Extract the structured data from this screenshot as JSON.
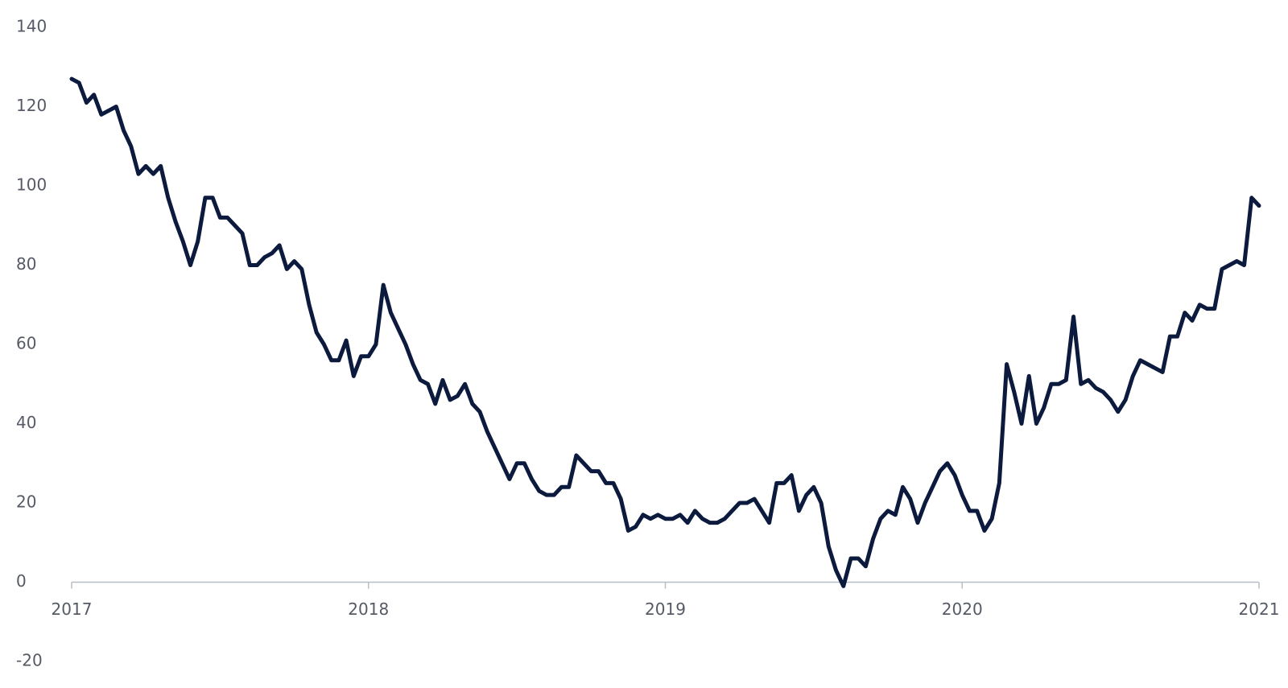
{
  "chart_data": {
    "type": "line",
    "x": [
      2017,
      2017.025,
      2017.05,
      2017.075,
      2017.1,
      2017.125,
      2017.15,
      2017.175,
      2017.2,
      2017.225,
      2017.25,
      2017.275,
      2017.3,
      2017.325,
      2017.35,
      2017.375,
      2017.4,
      2017.425,
      2017.45,
      2017.475,
      2017.5,
      2017.525,
      2017.55,
      2017.575,
      2017.6,
      2017.625,
      2017.65,
      2017.675,
      2017.7,
      2017.725,
      2017.75,
      2017.775,
      2017.8,
      2017.825,
      2017.85,
      2017.875,
      2017.9,
      2017.925,
      2017.95,
      2017.975,
      2018,
      2018.025,
      2018.05,
      2018.075,
      2018.1,
      2018.125,
      2018.15,
      2018.175,
      2018.2,
      2018.225,
      2018.25,
      2018.275,
      2018.3,
      2018.325,
      2018.35,
      2018.375,
      2018.4,
      2018.425,
      2018.45,
      2018.475,
      2018.5,
      2018.525,
      2018.55,
      2018.575,
      2018.6,
      2018.625,
      2018.65,
      2018.675,
      2018.7,
      2018.725,
      2018.75,
      2018.775,
      2018.8,
      2018.825,
      2018.85,
      2018.875,
      2018.9,
      2018.925,
      2018.95,
      2018.975,
      2019,
      2019.025,
      2019.05,
      2019.075,
      2019.1,
      2019.125,
      2019.15,
      2019.175,
      2019.2,
      2019.225,
      2019.25,
      2019.275,
      2019.3,
      2019.325,
      2019.35,
      2019.375,
      2019.4,
      2019.425,
      2019.45,
      2019.475,
      2019.5,
      2019.525,
      2019.55,
      2019.575,
      2019.6,
      2019.625,
      2019.65,
      2019.675,
      2019.7,
      2019.725,
      2019.75,
      2019.775,
      2019.8,
      2019.825,
      2019.85,
      2019.875,
      2019.9,
      2019.925,
      2019.95,
      2019.975,
      2020,
      2020.025,
      2020.05,
      2020.075,
      2020.1,
      2020.125,
      2020.15,
      2020.175,
      2020.2,
      2020.225,
      2020.25,
      2020.275,
      2020.3,
      2020.325,
      2020.35,
      2020.375,
      2020.4,
      2020.425,
      2020.45,
      2020.475,
      2020.5,
      2020.525,
      2020.55,
      2020.575,
      2020.6,
      2020.625,
      2020.65,
      2020.675,
      2020.7,
      2020.725,
      2020.75,
      2020.775,
      2020.8,
      2020.825,
      2020.85,
      2020.875,
      2020.9,
      2020.925,
      2020.95,
      2020.975,
      2021
    ],
    "values": [
      127,
      126,
      121,
      123,
      118,
      119,
      120,
      114,
      110,
      103,
      105,
      103,
      105,
      97,
      91,
      86,
      80,
      86,
      97,
      97,
      92,
      92,
      90,
      88,
      80,
      80,
      82,
      83,
      85,
      79,
      81,
      79,
      70,
      63,
      60,
      56,
      56,
      61,
      52,
      57,
      57,
      60,
      75,
      68,
      64,
      60,
      55,
      51,
      50,
      45,
      51,
      46,
      47,
      50,
      45,
      43,
      38,
      34,
      30,
      26,
      30,
      30,
      26,
      23,
      22,
      22,
      24,
      24,
      32,
      30,
      28,
      28,
      25,
      25,
      21,
      13,
      14,
      17,
      16,
      17,
      16,
      16,
      17,
      15,
      18,
      16,
      15,
      15,
      16,
      18,
      20,
      20,
      21,
      18,
      15,
      25,
      25,
      27,
      18,
      22,
      24,
      20,
      9,
      3,
      -1,
      6,
      6,
      4,
      11,
      16,
      18,
      17,
      24,
      21,
      15,
      20,
      24,
      28,
      30,
      27,
      22,
      18,
      18,
      13,
      16,
      25,
      55,
      48,
      40,
      52,
      40,
      44,
      50,
      50,
      51,
      67,
      50,
      51,
      49,
      48,
      46,
      43,
      46,
      52,
      56,
      55,
      54,
      53,
      62,
      62,
      68,
      66,
      70,
      69,
      69,
      79,
      80,
      81,
      80,
      97,
      95
    ],
    "color": "#0b1a3d",
    "xlim": [
      2017,
      2021
    ],
    "xticks": [
      2017,
      2018,
      2019,
      2020,
      2021
    ],
    "ylim": [
      -20,
      140
    ],
    "yticks": [
      -20,
      0,
      20,
      40,
      60,
      80,
      100,
      120,
      140
    ],
    "grid": false
  }
}
